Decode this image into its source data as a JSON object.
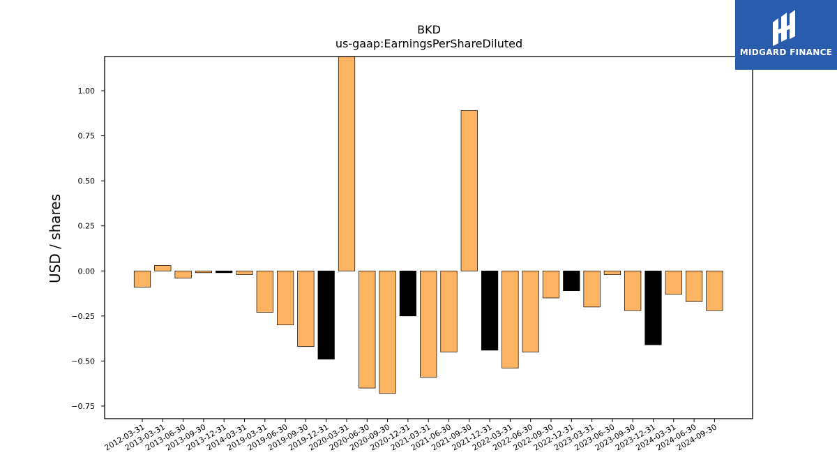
{
  "chart_data": {
    "type": "bar",
    "title": "BKD",
    "subtitle": "us-gaap:EarningsPerShareDiluted",
    "xlabel": "",
    "ylabel": "USD / shares",
    "ylim": [
      -0.82,
      1.19
    ],
    "yticks": [
      1.0,
      0.75,
      0.5,
      0.25,
      0.0,
      -0.25,
      -0.5,
      -0.75
    ],
    "ytick_labels": [
      "1.00",
      "0.75",
      "0.50",
      "0.25",
      "0.00",
      "−0.25",
      "−0.50",
      "−0.75"
    ],
    "grid": false,
    "categories": [
      "2012-03-31",
      "2013-03-31",
      "2013-06-30",
      "2013-09-30",
      "2013-12-31",
      "2014-03-31",
      "2019-03-31",
      "2019-06-30",
      "2019-09-30",
      "2019-12-31",
      "2020-03-31",
      "2020-06-30",
      "2020-09-30",
      "2020-12-31",
      "2021-03-31",
      "2021-06-30",
      "2021-09-30",
      "2021-12-31",
      "2022-03-31",
      "2022-06-30",
      "2022-09-30",
      "2022-12-31",
      "2023-03-31",
      "2023-06-30",
      "2023-09-30",
      "2023-12-31",
      "2024-03-31",
      "2024-06-30",
      "2024-09-30"
    ],
    "values": [
      -0.09,
      0.03,
      -0.04,
      -0.01,
      -0.01,
      -0.02,
      -0.23,
      -0.3,
      -0.42,
      -0.49,
      1.22,
      -0.65,
      -0.68,
      -0.25,
      -0.59,
      -0.45,
      0.89,
      -0.44,
      -0.54,
      -0.45,
      -0.15,
      -0.11,
      -0.2,
      -0.02,
      -0.22,
      -0.41,
      -0.13,
      -0.17,
      -0.22
    ],
    "bar_colors": [
      "#fdb462",
      "#fdb462",
      "#fdb462",
      "#fdb462",
      "#000000",
      "#fdb462",
      "#fdb462",
      "#fdb462",
      "#fdb462",
      "#000000",
      "#fdb462",
      "#fdb462",
      "#fdb462",
      "#000000",
      "#fdb462",
      "#fdb462",
      "#fdb462",
      "#000000",
      "#fdb462",
      "#fdb462",
      "#fdb462",
      "#000000",
      "#fdb462",
      "#fdb462",
      "#fdb462",
      "#000000",
      "#fdb462",
      "#fdb462",
      "#fdb462"
    ],
    "colors": {
      "quarter": "#fdb462",
      "year_end": "#000000"
    }
  },
  "logo": {
    "text": "MIDGARD FINANCE",
    "background": "#2a5cad"
  }
}
